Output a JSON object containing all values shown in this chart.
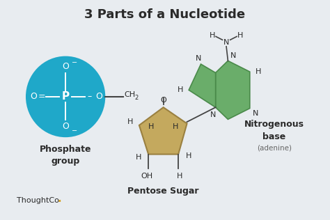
{
  "title": "3 Parts of a Nucleotide",
  "bg_color": "#e8ecf0",
  "phosphate_color": "#1fa8c9",
  "sugar_color": "#c4a95e",
  "sugar_edge": "#9a8040",
  "base_color": "#6aad6a",
  "base_edge": "#4a8a4a",
  "text_color": "#2a2a2a",
  "bond_color": "#444444",
  "label_phosphate_1": "Phosphate",
  "label_phosphate_2": "group",
  "label_sugar": "Pentose Sugar",
  "label_base_1": "Nitrogenous",
  "label_base_2": "base",
  "label_base_sub": "(adenine)",
  "thoughtco_text": "ThoughtCo",
  "thoughtco_dot_color": "#d4a020"
}
